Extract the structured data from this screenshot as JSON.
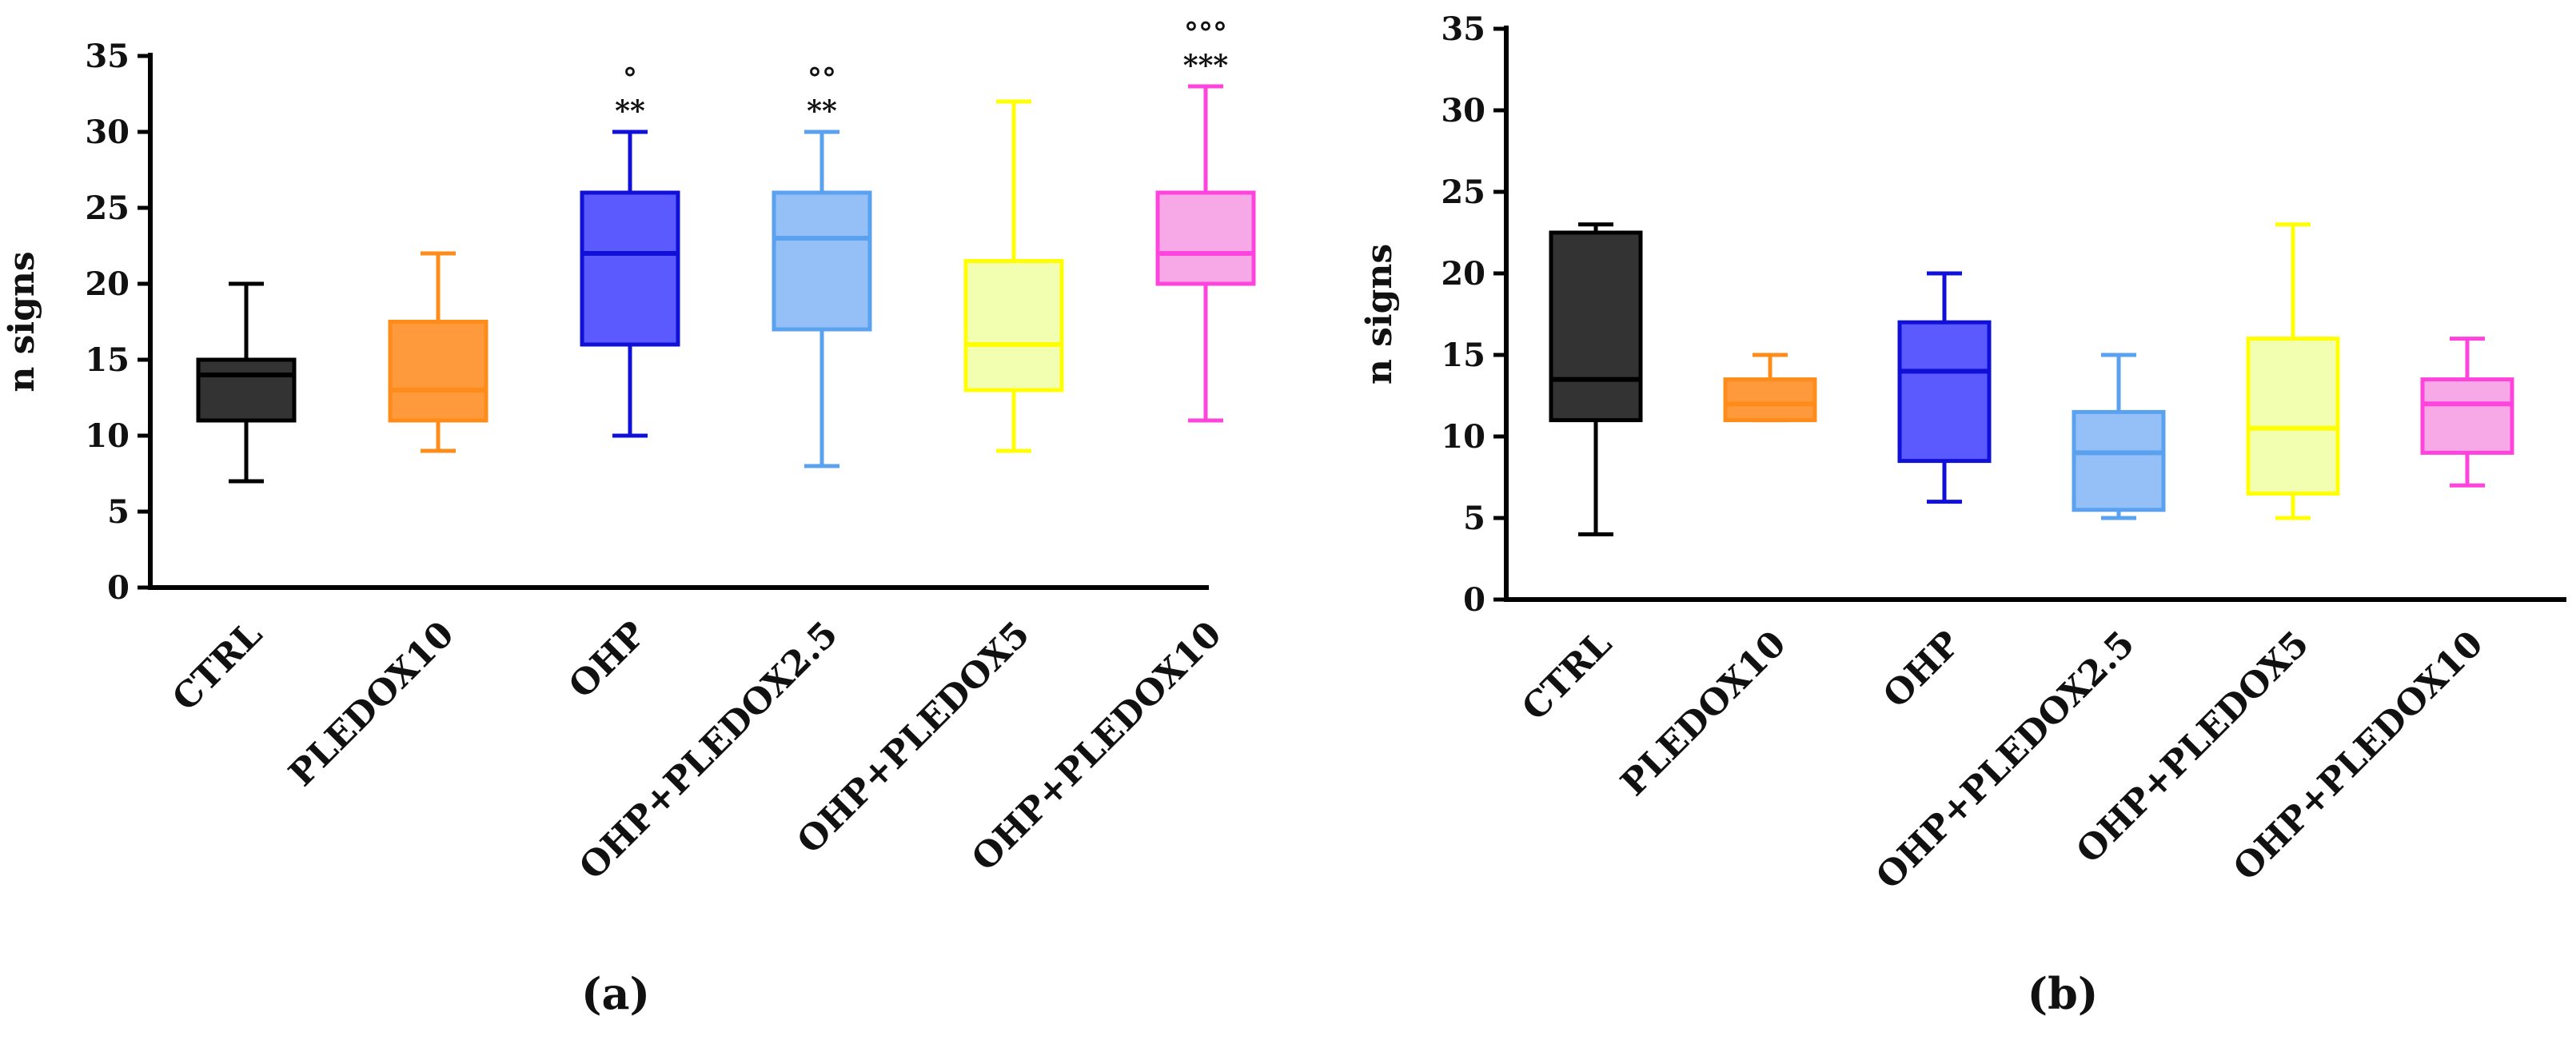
{
  "figure": {
    "panels": [
      "(a)",
      "(b)"
    ]
  },
  "chart_data": [
    {
      "type": "box",
      "panel_label": "(a)",
      "title": "",
      "xlabel": "",
      "ylabel": "n signs",
      "ylim": [
        0,
        35
      ],
      "yticks": [
        "0",
        "5",
        "10",
        "15",
        "20",
        "25",
        "30",
        "35"
      ],
      "categories": [
        "CTRL",
        "PLEDOX10",
        "OHP",
        "OHP+PLEDOX2.5",
        "OHP+PLEDOX5",
        "OHP+PLEDOX10"
      ],
      "colors": {
        "stroke": [
          "#000000",
          "#ff8c1a",
          "#1010d8",
          "#5aa2f0",
          "#ffff00",
          "#ff44dd"
        ],
        "fill": [
          "#333333",
          "#ff9a3c",
          "#5a5aff",
          "#94c0f7",
          "#f2ffb0",
          "#f7a8e6"
        ]
      },
      "series": [
        {
          "name": "CTRL",
          "min": 7,
          "q1": 11,
          "median": 14,
          "q3": 15,
          "max": 20
        },
        {
          "name": "PLEDOX10",
          "min": 9,
          "q1": 11,
          "median": 13,
          "q3": 17.5,
          "max": 22
        },
        {
          "name": "OHP",
          "min": 10,
          "q1": 16,
          "median": 22,
          "q3": 26,
          "max": 30
        },
        {
          "name": "OHP+PLEDOX2.5",
          "min": 8,
          "q1": 17,
          "median": 23,
          "q3": 26,
          "max": 30
        },
        {
          "name": "OHP+PLEDOX5",
          "min": 9,
          "q1": 13,
          "median": 16,
          "q3": 21.5,
          "max": 32
        },
        {
          "name": "OHP+PLEDOX10",
          "min": 11,
          "q1": 20,
          "median": 22,
          "q3": 26,
          "max": 33
        }
      ],
      "annotations": [
        {
          "category": "OHP",
          "stars": "**",
          "circles": "°"
        },
        {
          "category": "OHP+PLEDOX2.5",
          "stars": "**",
          "circles": "°°"
        },
        {
          "category": "OHP+PLEDOX10",
          "stars": "***",
          "circles": "°°°"
        }
      ]
    },
    {
      "type": "box",
      "panel_label": "(b)",
      "title": "",
      "xlabel": "",
      "ylabel": "n signs",
      "ylim": [
        0,
        35
      ],
      "yticks": [
        "0",
        "5",
        "10",
        "15",
        "20",
        "25",
        "30",
        "35"
      ],
      "categories": [
        "CTRL",
        "PLEDOX10",
        "OHP",
        "OHP+PLEDOX2.5",
        "OHP+PLEDOX5",
        "OHP+PLEDOX10"
      ],
      "colors": {
        "stroke": [
          "#000000",
          "#ff8c1a",
          "#1010d8",
          "#5aa2f0",
          "#ffff00",
          "#ff44dd"
        ],
        "fill": [
          "#333333",
          "#ff9a3c",
          "#5a5aff",
          "#94c0f7",
          "#f2ffb0",
          "#f7a8e6"
        ]
      },
      "series": [
        {
          "name": "CTRL",
          "min": 4,
          "q1": 11,
          "median": 13.5,
          "q3": 22.5,
          "max": 23
        },
        {
          "name": "PLEDOX10",
          "min": 11,
          "q1": 11,
          "median": 12,
          "q3": 13.5,
          "max": 15
        },
        {
          "name": "OHP",
          "min": 6,
          "q1": 8.5,
          "median": 14,
          "q3": 17,
          "max": 20
        },
        {
          "name": "OHP+PLEDOX2.5",
          "min": 5,
          "q1": 5.5,
          "median": 9,
          "q3": 11.5,
          "max": 15
        },
        {
          "name": "OHP+PLEDOX5",
          "min": 5,
          "q1": 6.5,
          "median": 10.5,
          "q3": 16,
          "max": 23
        },
        {
          "name": "OHP+PLEDOX10",
          "min": 7,
          "q1": 9,
          "median": 12,
          "q3": 13.5,
          "max": 16
        }
      ],
      "annotations": []
    }
  ]
}
